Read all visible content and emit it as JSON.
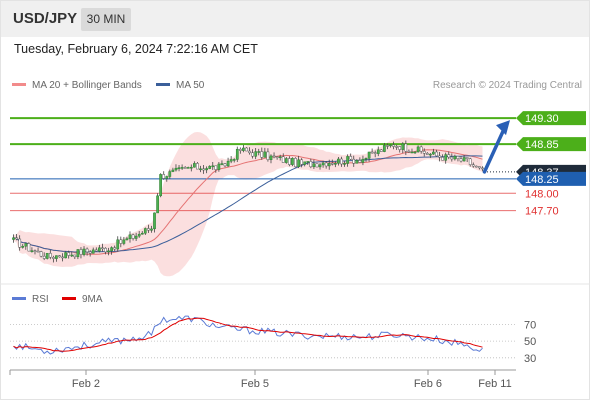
{
  "header": {
    "symbol": "USD/JPY",
    "timeframe": "30 MIN"
  },
  "datetime": "Tuesday, February 6, 2024 7:22:16 AM CET",
  "legend": {
    "main": [
      {
        "label": "MA 20 + Bollinger Bands",
        "color": "#f28b8b"
      },
      {
        "label": "MA 50",
        "color": "#3b5f9a"
      }
    ],
    "rsi": [
      {
        "label": "RSI",
        "color": "#5b7bd5"
      },
      {
        "label": "9MA",
        "color": "#e00000"
      }
    ]
  },
  "credit": "Research © 2024 Trading Central",
  "colors": {
    "green": "#4caf1a",
    "blue": "#1f5fb0",
    "red": "#e03030",
    "current": "#1f2b3a"
  },
  "chart_data": [
    {
      "type": "candlestick",
      "title": "",
      "ylim": [
        146.5,
        149.7
      ],
      "levels": [
        {
          "value": 149.3,
          "label": "149.30",
          "kind": "resistance"
        },
        {
          "value": 148.85,
          "label": "148.85",
          "kind": "resistance"
        },
        {
          "value": 148.37,
          "label": "148.37",
          "kind": "current"
        },
        {
          "value": 148.25,
          "label": "148.25",
          "kind": "pivot"
        },
        {
          "value": 148.0,
          "label": "148.00",
          "kind": "support"
        },
        {
          "value": 147.7,
          "label": "147.70",
          "kind": "support"
        }
      ],
      "price_segments": [
        {
          "n": 12,
          "to": 146.9
        },
        {
          "n": 20,
          "to": 147.05
        },
        {
          "n": 8,
          "to": 147.25
        },
        {
          "n": 6,
          "to": 147.4
        },
        {
          "n": 3,
          "to": 148.3
        },
        {
          "n": 10,
          "to": 148.45
        },
        {
          "n": 10,
          "to": 148.45
        },
        {
          "n": 6,
          "to": 148.75
        },
        {
          "n": 20,
          "to": 148.5
        },
        {
          "n": 20,
          "to": 148.6
        },
        {
          "n": 10,
          "to": 148.85
        },
        {
          "n": 14,
          "to": 148.65
        },
        {
          "n": 10,
          "to": 148.55
        },
        {
          "n": 5,
          "to": 148.37
        }
      ],
      "price_start": 147.2,
      "x_ticks": [
        "Feb 2",
        "Feb 5",
        "Feb 6",
        "Feb 11"
      ],
      "forecast_arrow": {
        "from": 148.37,
        "to": 149.3
      }
    },
    {
      "type": "line",
      "title": "",
      "ylim": [
        25,
        80
      ],
      "y_ticks": [
        "70",
        "50",
        "30"
      ],
      "series": [
        {
          "name": "RSI",
          "color": "#5b7bd5"
        },
        {
          "name": "9MA",
          "color": "#e00000"
        }
      ],
      "rsi_segments": [
        {
          "n": 12,
          "to": 38
        },
        {
          "n": 20,
          "to": 49
        },
        {
          "n": 8,
          "to": 53
        },
        {
          "n": 6,
          "to": 58
        },
        {
          "n": 3,
          "to": 76
        },
        {
          "n": 10,
          "to": 77
        },
        {
          "n": 10,
          "to": 66
        },
        {
          "n": 6,
          "to": 64
        },
        {
          "n": 20,
          "to": 57
        },
        {
          "n": 20,
          "to": 55
        },
        {
          "n": 10,
          "to": 58
        },
        {
          "n": 14,
          "to": 52
        },
        {
          "n": 10,
          "to": 45
        },
        {
          "n": 5,
          "to": 38
        }
      ],
      "rsi_start": 46
    }
  ]
}
